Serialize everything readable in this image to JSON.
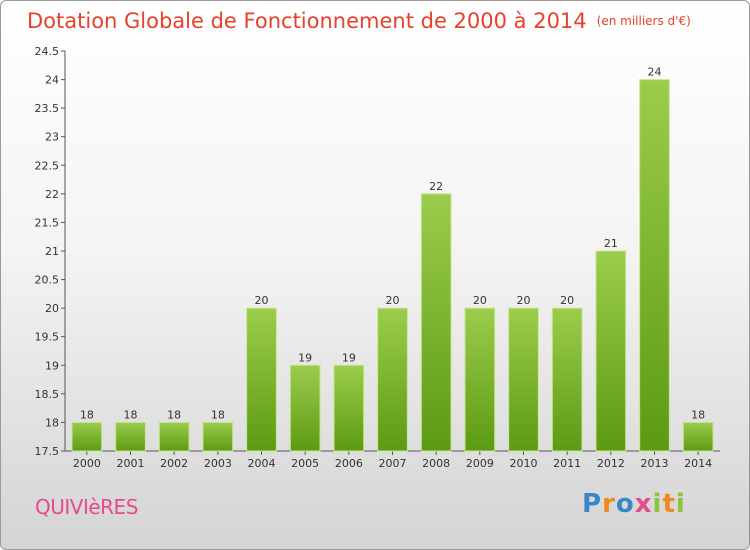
{
  "header": {
    "title": "Dotation Globale de Fonctionnement de 2000 à 2014",
    "subtitle": "(en milliers d'€)"
  },
  "footer": {
    "commune": "QUIVIèRES",
    "logo_text": "Proxiti"
  },
  "colors": {
    "bar_top": "#9ccc4c",
    "bar_bottom": "#5c9a14",
    "title": "#e8402a",
    "commune": "#e64b8c"
  },
  "chart_data": {
    "type": "bar",
    "title": "Dotation Globale de Fonctionnement de 2000 à 2014",
    "subtitle": "(en milliers d'€)",
    "categories": [
      "2000",
      "2001",
      "2002",
      "2003",
      "2004",
      "2005",
      "2006",
      "2007",
      "2008",
      "2009",
      "2010",
      "2011",
      "2012",
      "2013",
      "2014"
    ],
    "values": [
      18,
      18,
      18,
      18,
      20,
      19,
      19,
      20,
      22,
      20,
      20,
      20,
      21,
      24,
      18
    ],
    "data_labels": [
      "18",
      "18",
      "18",
      "18",
      "20",
      "19",
      "19",
      "20",
      "22",
      "20",
      "20",
      "20",
      "21",
      "24",
      "18"
    ],
    "y_ticks": [
      17.5,
      18,
      18.5,
      19,
      19.5,
      20,
      20.5,
      21,
      21.5,
      22,
      22.5,
      23,
      23.5,
      24,
      24.5
    ],
    "y_tick_labels": [
      "17.5",
      "18",
      "18.5",
      "19",
      "19.5",
      "20",
      "20.5",
      "21",
      "21.5",
      "22",
      "22.5",
      "23",
      "23.5",
      "24",
      "24.5"
    ],
    "xlabel": "",
    "ylabel": "",
    "ylim": [
      17.5,
      24.5
    ],
    "grid": false,
    "legend": "none"
  }
}
